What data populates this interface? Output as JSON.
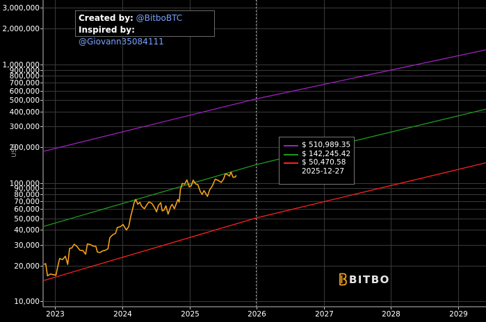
{
  "credits": {
    "created_label": "Created by:",
    "created_value": "@BitboBTC",
    "inspired_label": "Inspired by:",
    "inspired_value": "@Giovann35084111"
  },
  "tooltip": {
    "entries": [
      {
        "value": "$ 510,989.35",
        "color": "#a020c0"
      },
      {
        "value": "$ 142,245.42",
        "color": "#1f9a1f"
      },
      {
        "value": "$ 50,470.58",
        "color": "#ff2020"
      }
    ],
    "date": "2025-12-27"
  },
  "logo": {
    "text": "BITBO"
  },
  "chart_data": {
    "type": "line",
    "ylabel": "USD",
    "yscale": "log",
    "ylim": [
      9000,
      3500000
    ],
    "xlim": [
      "2022-10-27",
      "2029-06-01"
    ],
    "x_ticks": [
      "2023",
      "2024",
      "2025",
      "2026",
      "2027",
      "2028",
      "2029"
    ],
    "y_ticks": [
      10000,
      20000,
      30000,
      40000,
      50000,
      60000,
      70000,
      80000,
      90000,
      100000,
      200000,
      300000,
      400000,
      500000,
      600000,
      700000,
      800000,
      900000,
      1000000,
      2000000,
      3000000
    ],
    "y_tick_labels": [
      "10,000",
      "20,000",
      "30,000",
      "40,000",
      "50,000",
      "60,000",
      "70,000",
      "80,000",
      "90,000",
      "100,000",
      "200,000",
      "300,000",
      "400,000",
      "500,000",
      "600,000",
      "700,000",
      "800,000",
      "900,000",
      "1,000,000",
      "2,000,000",
      "3,000,000"
    ],
    "crosshair_date": "2025-12-27",
    "grid": true,
    "series": [
      {
        "color": "#a020c0",
        "x": [
          "2022-11-01",
          "2025-12-27",
          "2029-06-01"
        ],
        "values": [
          185000,
          510989,
          1330000
        ]
      },
      {
        "color": "#1f9a1f",
        "x": [
          "2022-11-01",
          "2025-12-27",
          "2029-06-01"
        ],
        "values": [
          43000,
          142245,
          420000
        ]
      },
      {
        "color": "#ff2020",
        "x": [
          "2022-11-01",
          "2025-12-27",
          "2029-06-01"
        ],
        "values": [
          15000,
          50471,
          148000
        ]
      },
      {
        "color": "#f7a31a",
        "x": [
          "2022-11-01",
          "2022-11-10",
          "2022-11-20",
          "2022-12-05",
          "2022-12-20",
          "2023-01-05",
          "2023-01-14",
          "2023-01-25",
          "2023-02-10",
          "2023-02-25",
          "2023-03-10",
          "2023-03-20",
          "2023-04-01",
          "2023-04-14",
          "2023-04-28",
          "2023-05-15",
          "2023-06-01",
          "2023-06-15",
          "2023-06-25",
          "2023-07-10",
          "2023-07-25",
          "2023-08-10",
          "2023-08-18",
          "2023-09-01",
          "2023-09-15",
          "2023-10-01",
          "2023-10-15",
          "2023-10-25",
          "2023-11-10",
          "2023-11-25",
          "2023-12-05",
          "2023-12-20",
          "2024-01-05",
          "2024-01-12",
          "2024-01-23",
          "2024-02-05",
          "2024-02-15",
          "2024-02-28",
          "2024-03-05",
          "2024-03-14",
          "2024-03-25",
          "2024-04-05",
          "2024-04-15",
          "2024-04-30",
          "2024-05-15",
          "2024-05-25",
          "2024-06-10",
          "2024-06-25",
          "2024-07-05",
          "2024-07-15",
          "2024-07-28",
          "2024-08-05",
          "2024-08-15",
          "2024-08-25",
          "2024-09-06",
          "2024-09-20",
          "2024-09-28",
          "2024-10-10",
          "2024-10-29",
          "2024-11-05",
          "2024-11-12",
          "2024-11-22",
          "2024-12-05",
          "2024-12-17",
          "2024-12-30",
          "2025-01-10",
          "2025-01-20",
          "2025-02-03",
          "2025-02-15",
          "2025-02-28",
          "2025-03-10",
          "2025-03-20",
          "2025-04-08",
          "2025-04-20",
          "2025-05-05",
          "2025-05-20",
          "2025-06-05",
          "2025-06-22",
          "2025-07-05",
          "2025-07-14",
          "2025-07-25",
          "2025-08-05",
          "2025-08-14",
          "2025-08-25",
          "2025-09-05",
          "2025-09-12"
        ],
        "values": [
          20500,
          20800,
          16400,
          17000,
          16800,
          16600,
          19500,
          23000,
          22500,
          24000,
          20500,
          28000,
          28200,
          30300,
          29200,
          27000,
          26800,
          25000,
          30500,
          30200,
          29300,
          29100,
          26100,
          25800,
          26600,
          27000,
          27800,
          34500,
          36500,
          37500,
          42000,
          42500,
          44500,
          42600,
          40000,
          42800,
          51800,
          62000,
          68000,
          72500,
          66000,
          68500,
          63500,
          60500,
          66000,
          69000,
          67000,
          61500,
          57000,
          64500,
          68000,
          58000,
          59000,
          64000,
          54500,
          63000,
          65800,
          60500,
          72500,
          68800,
          88000,
          99000,
          97500,
          106000,
          92500,
          94500,
          105500,
          98000,
          96500,
          84500,
          80000,
          86000,
          77000,
          87500,
          94500,
          107500,
          105000,
          101000,
          108000,
          119000,
          118000,
          114000,
          123500,
          111500,
          112000,
          115500
        ]
      }
    ]
  }
}
